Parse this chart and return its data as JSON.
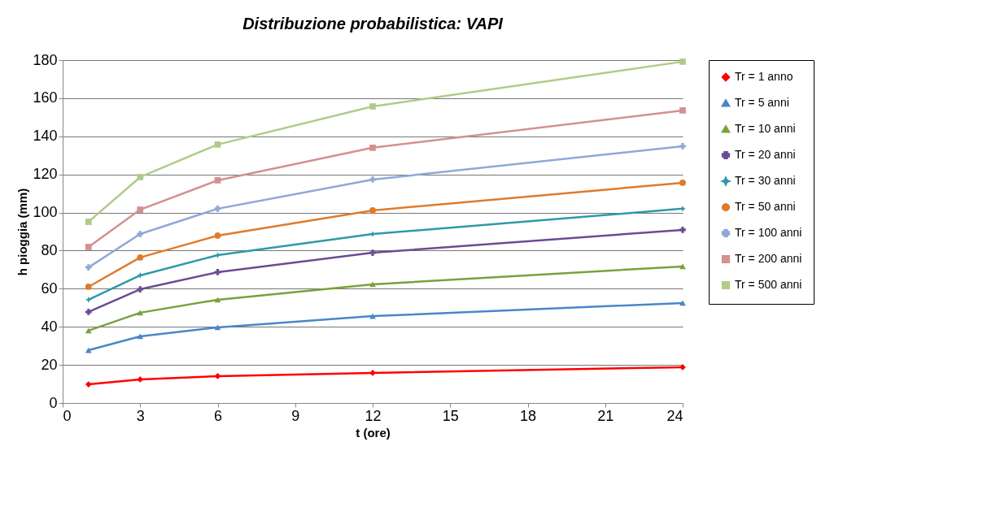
{
  "chart_data": {
    "type": "line",
    "title": "Distribuzione probabilistica:  VAPI",
    "xlabel": "t (ore)",
    "ylabel": "h pioggia (mm)",
    "x": [
      1,
      3,
      6,
      12,
      24
    ],
    "series": [
      {
        "name": "Tr = 1 anno",
        "color": "#ff0000",
        "marker": "diamond",
        "values": [
          9.8,
          12.4,
          14.1,
          15.8,
          18.8
        ]
      },
      {
        "name": "Tr = 5 anni",
        "color": "#4a86c8",
        "marker": "triangle",
        "values": [
          27.7,
          35,
          39.7,
          45.6,
          52.5
        ]
      },
      {
        "name": "Tr = 10 anni",
        "color": "#77a33a",
        "marker": "triangle",
        "values": [
          38,
          47.4,
          54.2,
          62.3,
          71.7
        ]
      },
      {
        "name": "Tr = 20 anni",
        "color": "#6a4c93",
        "marker": "cross",
        "values": [
          47.8,
          59.7,
          68.7,
          78.9,
          90.9
        ]
      },
      {
        "name": "Tr = 30 anni",
        "color": "#2e99a8",
        "marker": "star",
        "values": [
          54.2,
          67,
          77.6,
          88.7,
          102
        ]
      },
      {
        "name": "Tr = 50 anni",
        "color": "#e07b2a",
        "marker": "circle",
        "values": [
          61,
          76.4,
          87.9,
          101.1,
          115.6
        ]
      },
      {
        "name": "Tr = 100 anni",
        "color": "#8fa8d8",
        "marker": "cross",
        "values": [
          71.2,
          88.7,
          102,
          117.3,
          134.8
        ]
      },
      {
        "name": "Tr = 200 anni",
        "color": "#d49090",
        "marker": "square",
        "values": [
          81.9,
          101.5,
          116.9,
          134,
          153.6
        ]
      },
      {
        "name": "Tr = 500 anni",
        "color": "#b0cc88",
        "marker": "square",
        "values": [
          95.1,
          118.6,
          135.7,
          155.7,
          179.2
        ]
      }
    ],
    "xlim": [
      0,
      24
    ],
    "xticks": [
      0,
      3,
      6,
      9,
      12,
      15,
      18,
      21,
      24
    ],
    "ylim": [
      0,
      180
    ],
    "yticks": [
      0,
      20,
      40,
      60,
      80,
      100,
      120,
      140,
      160,
      180
    ],
    "grid": "y",
    "legend": "right",
    "line_style": "solid"
  }
}
